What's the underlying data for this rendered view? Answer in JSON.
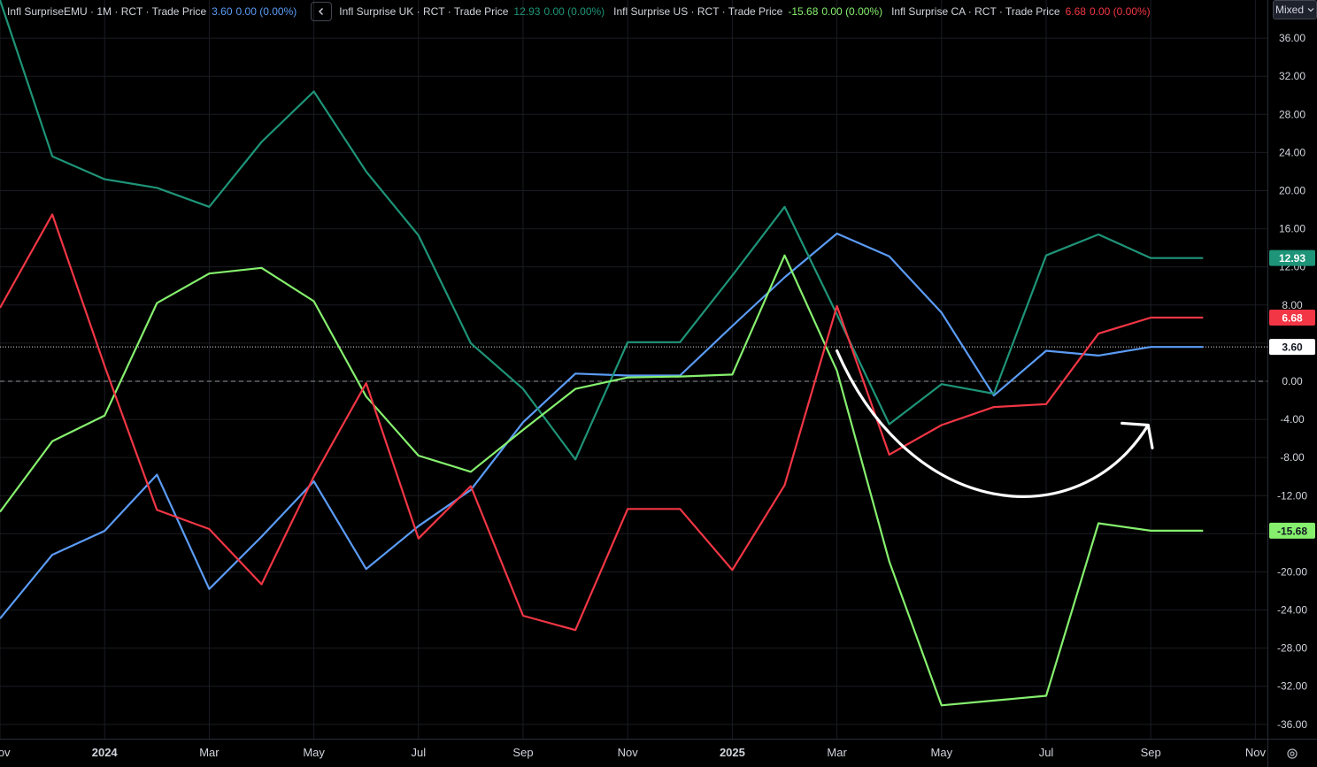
{
  "legend": {
    "collapse_icon": "chevron-left-icon",
    "items": [
      {
        "title": "Infl SurpriseEMU · 1M · RCT · Trade Price",
        "value": "3.60",
        "change": "0.00 (0.00%)",
        "color": "#5b9cf6"
      },
      {
        "title": "Infl Surprise UK · RCT · Trade Price",
        "value": "12.93",
        "change": "0.00 (0.00%)",
        "color": "#1e9478"
      },
      {
        "title": "Infl Surprise US · RCT · Trade Price",
        "value": "-15.68",
        "change": "0.00 (0.00%)",
        "color": "#86f06e"
      },
      {
        "title": "Infl Surprise CA · RCT · Trade Price",
        "value": "6.68",
        "change": "0.00 (0.00%)",
        "color": "#f23645"
      }
    ]
  },
  "price_scale": {
    "mode_label": "Mixed",
    "mode_icon": "chevron-down-icon",
    "settings_icon": "gear-icon"
  },
  "chart_data": {
    "type": "line",
    "x": [
      "2023-11",
      "2023-12",
      "2024-01",
      "2024-02",
      "2024-03",
      "2024-04",
      "2024-05",
      "2024-06",
      "2024-07",
      "2024-08",
      "2024-09",
      "2024-10",
      "2024-11",
      "2024-12",
      "2025-01",
      "2025-02",
      "2025-03",
      "2025-04",
      "2025-05",
      "2025-06",
      "2025-07",
      "2025-08",
      "2025-09",
      "2025-10"
    ],
    "x_tick_labels": [
      {
        "x": "2023-11",
        "label": "Nov",
        "bold": false
      },
      {
        "x": "2024-01",
        "label": "2024",
        "bold": true
      },
      {
        "x": "2024-03",
        "label": "Mar",
        "bold": false
      },
      {
        "x": "2024-05",
        "label": "May",
        "bold": false
      },
      {
        "x": "2024-07",
        "label": "Jul",
        "bold": false
      },
      {
        "x": "2024-09",
        "label": "Sep",
        "bold": false
      },
      {
        "x": "2024-11",
        "label": "Nov",
        "bold": false
      },
      {
        "x": "2025-01",
        "label": "2025",
        "bold": true
      },
      {
        "x": "2025-03",
        "label": "Mar",
        "bold": false
      },
      {
        "x": "2025-05",
        "label": "May",
        "bold": false
      },
      {
        "x": "2025-07",
        "label": "Jul",
        "bold": false
      },
      {
        "x": "2025-09",
        "label": "Sep",
        "bold": false
      },
      {
        "x": "2025-11",
        "label": "Nov",
        "bold": false
      }
    ],
    "y_ticks": [
      "36.00",
      "32.00",
      "28.00",
      "24.00",
      "20.00",
      "16.00",
      "12.00",
      "8.00",
      "4.00",
      "0.00",
      "-4.00",
      "-8.00",
      "-12.00",
      "-16.00",
      "-20.00",
      "-24.00",
      "-28.00",
      "-32.00",
      "-36.00"
    ],
    "ylim": [
      -37.5,
      40
    ],
    "grid": true,
    "zero_line": true,
    "series": [
      {
        "key": "emu",
        "color": "#5b9cf6",
        "values": [
          -24.9,
          -18.2,
          -15.7,
          -9.8,
          -21.8,
          -16.3,
          -10.5,
          -19.7,
          -15.2,
          -11.4,
          -4.3,
          0.8,
          0.6,
          0.6,
          5.8,
          10.9,
          15.5,
          13.1,
          7.2,
          -1.5,
          3.2,
          2.7,
          3.6,
          3.6
        ]
      },
      {
        "key": "uk",
        "color": "#1e9478",
        "values": [
          40,
          23.6,
          21.2,
          20.3,
          18.3,
          25.1,
          30.4,
          22.0,
          15.3,
          4.0,
          -0.8,
          -8.2,
          4.1,
          4.1,
          11.1,
          18.3,
          7.0,
          -4.5,
          -0.3,
          -1.3,
          13.2,
          15.4,
          12.93,
          12.93
        ]
      },
      {
        "key": "us",
        "color": "#86f06e",
        "values": [
          -13.7,
          -6.3,
          -3.6,
          8.2,
          11.3,
          11.9,
          8.4,
          -1.6,
          -7.8,
          -9.5,
          -5.1,
          -0.8,
          0.4,
          0.5,
          0.7,
          13.2,
          1.1,
          -18.9,
          -34.0,
          -33.5,
          -33.0,
          -14.9,
          -15.68,
          -15.68
        ]
      },
      {
        "key": "ca",
        "color": "#f23645",
        "values": [
          7.7,
          17.5,
          1.6,
          -13.5,
          -15.5,
          -21.3,
          -10.0,
          -0.2,
          -16.5,
          -11.0,
          -24.6,
          -26.1,
          -13.4,
          -13.4,
          -19.8,
          -10.9,
          7.9,
          -7.7,
          -4.6,
          -2.7,
          -2.4,
          5.0,
          6.68,
          6.68
        ]
      }
    ],
    "last_value_labels": [
      {
        "series": "uk",
        "text": "12.93",
        "bg": "#1e9478",
        "fg": "#ffffff"
      },
      {
        "series": "ca",
        "text": "6.68",
        "bg": "#f23645",
        "fg": "#ffffff"
      },
      {
        "series": "emu",
        "text": "3.60",
        "bg": "#ffffff",
        "fg": "#131722"
      },
      {
        "series": "us",
        "text": "-15.68",
        "bg": "#86f06e",
        "fg": "#131722"
      }
    ],
    "price_line_value": 3.6,
    "annotation_arrow": {
      "color": "#ffffff"
    }
  }
}
